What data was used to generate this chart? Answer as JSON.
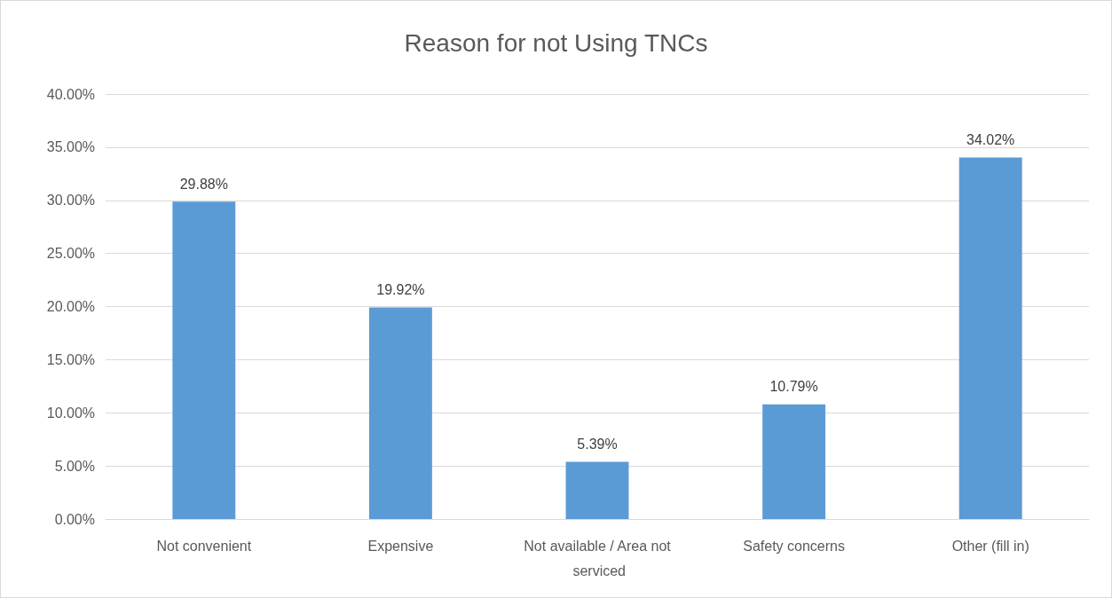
{
  "chart_data": {
    "type": "bar",
    "title": "Reason for not Using TNCs",
    "categories": [
      "Not convenient",
      "Expensive",
      "Not available / Area not serviced",
      "Safety concerns",
      "Other (fill in)"
    ],
    "values": [
      29.88,
      19.92,
      5.39,
      10.79,
      34.02
    ],
    "value_labels": [
      "29.88%",
      "19.92%",
      "5.39%",
      "10.79%",
      "34.02%"
    ],
    "color": "#5b9bd5",
    "ylim": [
      0,
      40
    ],
    "yticks": [
      {
        "value": 0,
        "label": "0.00%"
      },
      {
        "value": 5,
        "label": "5.00%"
      },
      {
        "value": 10,
        "label": "10.00%"
      },
      {
        "value": 15,
        "label": "15.00%"
      },
      {
        "value": 20,
        "label": "20.00%"
      },
      {
        "value": 25,
        "label": "25.00%"
      },
      {
        "value": 30,
        "label": "30.00%"
      },
      {
        "value": 35,
        "label": "35.00%"
      },
      {
        "value": 40,
        "label": "40.00%"
      }
    ],
    "grid": "y"
  }
}
